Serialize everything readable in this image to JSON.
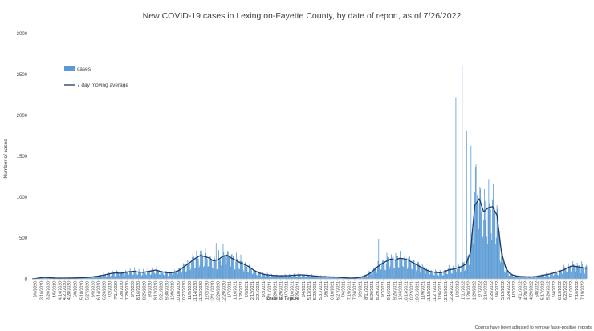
{
  "chart_data": {
    "type": "bar",
    "title": "New COVID-19 cases in Lexington-Fayette County, by date of report, as of 7/26/2022",
    "xlabel": "Date of report",
    "ylabel": "Number of cases",
    "ylim": [
      0,
      3000
    ],
    "y_ticks": [
      0,
      500,
      1000,
      1500,
      2000,
      2500,
      3000
    ],
    "x_range": [
      "2020-03-01",
      "2022-07-26"
    ],
    "x_tick_labels": [
      "3/6/2020",
      "3/16/2020",
      "3/26/2020",
      "4/5/2020",
      "4/14/2020",
      "4/21/2020",
      "4/28/2020",
      "5/8/2020",
      "5/18/2020",
      "5/27/2020",
      "6/5/2020",
      "6/14/2020",
      "6/23/2020",
      "7/2/2020",
      "7/11/2020",
      "7/20/2020",
      "7/29/2020",
      "8/7/2020",
      "8/16/2020",
      "8/25/2020",
      "9/3/2020",
      "9/12/2020",
      "9/21/2020",
      "9/30/2020",
      "10/9/2020",
      "10/18/2020",
      "10/27/2020",
      "11/5/2020",
      "11/14/2020",
      "11/23/2020",
      "12/2/2020",
      "12/11/2020",
      "12/20/2020",
      "12/29/2020",
      "1/7/2021",
      "1/16/2021",
      "1/25/2021",
      "2/3/2021",
      "2/12/2021",
      "2/21/2021",
      "3/2/2021",
      "3/11/2021",
      "3/20/2021",
      "3/29/2021",
      "4/7/2021",
      "4/16/2021",
      "4/25/2021",
      "5/4/2021",
      "5/13/2021",
      "5/22/2021",
      "5/31/2021",
      "6/9/2021",
      "6/18/2021",
      "6/27/2021",
      "7/6/2021",
      "7/15/2021",
      "7/24/2021",
      "8/2/2021",
      "8/11/2021",
      "8/20/2021",
      "8/29/2021",
      "9/7/2021",
      "9/16/2021",
      "9/25/2021",
      "10/4/2021",
      "10/13/2021",
      "10/22/2021",
      "10/31/2021",
      "11/9/2021",
      "11/18/2021",
      "11/27/2021",
      "12/6/2021",
      "12/15/2021",
      "12/24/2021",
      "1/2/2022",
      "1/11/2022",
      "1/20/2022",
      "1/29/2022",
      "2/7/2022",
      "2/16/2022",
      "2/25/2022",
      "3/6/2022",
      "3/15/2022",
      "3/24/2022",
      "4/2/2022",
      "4/11/2022",
      "4/20/2022",
      "4/29/2022",
      "5/8/2022",
      "5/17/2022",
      "5/26/2022",
      "6/4/2022",
      "6/13/2022",
      "6/22/2022",
      "7/1/2022",
      "7/10/2022",
      "7/19/2022"
    ],
    "series": [
      {
        "name": "cases",
        "kind": "bar",
        "color": "#5b9bd5",
        "weekly_values": [
          2,
          8,
          18,
          22,
          15,
          12,
          10,
          10,
          10,
          12,
          12,
          15,
          18,
          22,
          28,
          35,
          45,
          58,
          70,
          75,
          70,
          80,
          90,
          95,
          85,
          80,
          90,
          100,
          110,
          90,
          80,
          70,
          80,
          100,
          140,
          180,
          220,
          260,
          300,
          280,
          260,
          220,
          240,
          280,
          300,
          260,
          230,
          200,
          180,
          150,
          110,
          80,
          60,
          50,
          45,
          40,
          38,
          40,
          40,
          45,
          50,
          50,
          45,
          40,
          35,
          30,
          28,
          25,
          25,
          22,
          18,
          12,
          10,
          12,
          20,
          35,
          60,
          100,
          150,
          190,
          220,
          250,
          230,
          260,
          250,
          230,
          200,
          170,
          140,
          110,
          90,
          80,
          75,
          85,
          110,
          120,
          135,
          160,
          210,
          350,
          950,
          1000,
          800,
          880,
          900,
          800,
          300,
          120,
          60,
          40,
          30,
          28,
          25,
          25,
          30,
          40,
          50,
          60,
          75,
          90,
          110,
          140,
          160,
          150,
          140,
          130,
          125,
          120,
          130,
          150,
          165,
          170,
          160,
          150
        ]
      },
      {
        "name": "7 day moving average",
        "kind": "line",
        "color": "#1f3864",
        "weekly_values": [
          1,
          6,
          15,
          20,
          14,
          11,
          9,
          10,
          10,
          11,
          12,
          14,
          17,
          21,
          27,
          34,
          44,
          56,
          68,
          73,
          69,
          78,
          88,
          92,
          83,
          80,
          88,
          98,
          108,
          90,
          80,
          72,
          80,
          98,
          135,
          175,
          215,
          255,
          285,
          272,
          255,
          218,
          235,
          272,
          290,
          255,
          228,
          198,
          175,
          148,
          108,
          80,
          60,
          50,
          44,
          40,
          38,
          39,
          40,
          44,
          48,
          49,
          45,
          40,
          35,
          30,
          28,
          25,
          24,
          21,
          17,
          12,
          10,
          12,
          19,
          34,
          58,
          98,
          145,
          185,
          215,
          242,
          228,
          252,
          245,
          228,
          198,
          168,
          138,
          108,
          90,
          80,
          75,
          84,
          108,
          118,
          132,
          150,
          180,
          320,
          900,
          980,
          820,
          870,
          885,
          780,
          330,
          130,
          60,
          40,
          30,
          28,
          25,
          25,
          30,
          40,
          50,
          60,
          75,
          90,
          108,
          138,
          158,
          150,
          140,
          130,
          125,
          120,
          128,
          148,
          162,
          168,
          160,
          152
        ]
      }
    ],
    "notable_peaks": [
      {
        "date": "2021-12-31",
        "value": 2220
      },
      {
        "date": "2022-01-10",
        "value": 2610
      },
      {
        "date": "2022-01-17",
        "value": 1810
      },
      {
        "date": "2022-01-24",
        "value": 1630
      },
      {
        "date": "2022-02-01",
        "value": 1400
      },
      {
        "date": "2021-08-31",
        "value": 490
      },
      {
        "date": "2020-12-17",
        "value": 440
      }
    ],
    "legend": {
      "placement": "top-left",
      "items": [
        "cases",
        "7 day moving average"
      ]
    },
    "grid": false
  },
  "footnote": "Counts have been adjusted to remove false-positive reports"
}
